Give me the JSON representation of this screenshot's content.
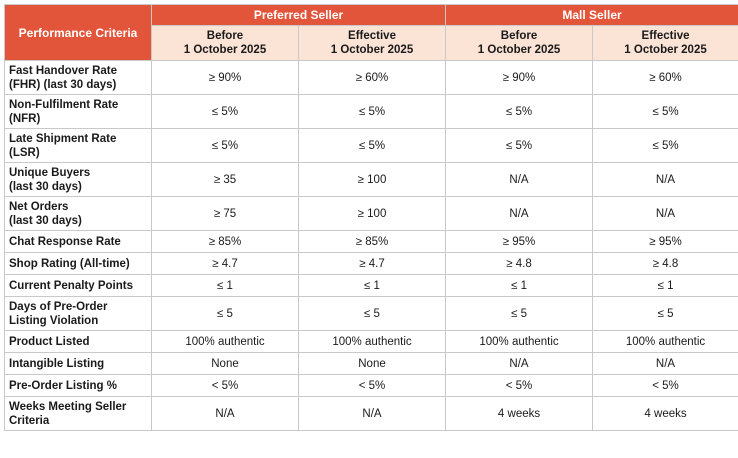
{
  "header": {
    "criteria_label": "Performance Criteria",
    "groups": [
      "Preferred Seller",
      "Mall Seller"
    ],
    "subcolumns": [
      [
        "Before",
        "1 October 2025"
      ],
      [
        "Effective",
        "1 October 2025"
      ],
      [
        "Before",
        "1 October 2025"
      ],
      [
        "Effective",
        "1 October 2025"
      ]
    ]
  },
  "rows": [
    {
      "criteria": [
        "Fast Handover Rate",
        "(FHR) (last 30 days)"
      ],
      "values": [
        "≥ 90%",
        "≥ 60%",
        "≥ 90%",
        "≥ 60%"
      ]
    },
    {
      "criteria": [
        "Non-Fulfilment Rate",
        "(NFR)"
      ],
      "values": [
        "≤ 5%",
        "≤ 5%",
        "≤ 5%",
        "≤ 5%"
      ]
    },
    {
      "criteria": [
        "Late Shipment Rate",
        "(LSR)"
      ],
      "values": [
        "≤ 5%",
        "≤ 5%",
        "≤ 5%",
        "≤ 5%"
      ]
    },
    {
      "criteria": [
        "Unique Buyers",
        "(last 30 days)"
      ],
      "values": [
        "≥ 35",
        "≥ 100",
        "N/A",
        "N/A"
      ]
    },
    {
      "criteria": [
        "Net Orders",
        "(last 30 days)"
      ],
      "values": [
        "≥ 75",
        "≥ 100",
        "N/A",
        "N/A"
      ]
    },
    {
      "criteria": [
        "Chat Response Rate"
      ],
      "values": [
        "≥ 85%",
        "≥ 85%",
        "≥ 95%",
        "≥ 95%"
      ]
    },
    {
      "criteria": [
        "Shop Rating (All-time)"
      ],
      "values": [
        "≥ 4.7",
        "≥ 4.7",
        "≥ 4.8",
        "≥ 4.8"
      ]
    },
    {
      "criteria": [
        "Current Penalty Points"
      ],
      "values": [
        "≤ 1",
        "≤ 1",
        "≤ 1",
        "≤ 1"
      ]
    },
    {
      "criteria": [
        "Days of Pre-Order",
        "Listing Violation"
      ],
      "values": [
        "≤ 5",
        "≤ 5",
        "≤ 5",
        "≤ 5"
      ]
    },
    {
      "criteria": [
        "Product Listed"
      ],
      "values": [
        "100% authentic",
        "100% authentic",
        "100% authentic",
        "100% authentic"
      ]
    },
    {
      "criteria": [
        "Intangible Listing"
      ],
      "values": [
        "None",
        "None",
        "N/A",
        "N/A"
      ]
    },
    {
      "criteria": [
        "Pre-Order Listing %"
      ],
      "values": [
        "< 5%",
        "< 5%",
        "< 5%",
        "< 5%"
      ]
    },
    {
      "criteria": [
        "Weeks Meeting Seller",
        "Criteria"
      ],
      "values": [
        "N/A",
        "N/A",
        "4 weeks",
        "4 weeks"
      ]
    }
  ],
  "colors": {
    "header_bg": "#e2553a",
    "header_text": "#ffffff",
    "subheader_bg": "#fbe3d6",
    "border": "#c9c9c9"
  }
}
